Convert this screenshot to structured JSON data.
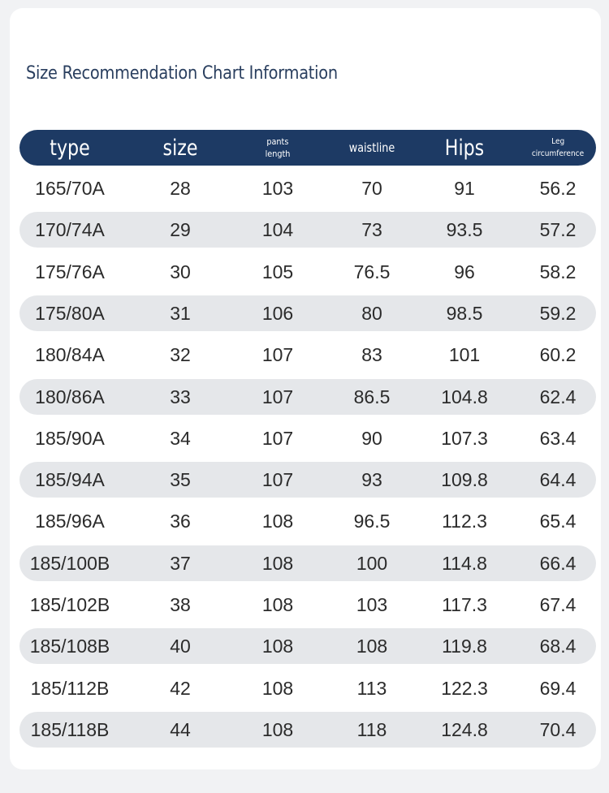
{
  "title": "Size Recommendation Chart Information",
  "headers": {
    "type": "type",
    "size": "size",
    "pants_length_1": "pants",
    "pants_length_2": "length",
    "waistline": "waistline",
    "hips": "Hips",
    "leg_1": "Leg",
    "leg_2": "circumference"
  },
  "rows": [
    [
      "165/70A",
      "28",
      "103",
      "70",
      "91",
      "56.2"
    ],
    [
      "170/74A",
      "29",
      "104",
      "73",
      "93.5",
      "57.2"
    ],
    [
      "175/76A",
      "30",
      "105",
      "76.5",
      "96",
      "58.2"
    ],
    [
      "175/80A",
      "31",
      "106",
      "80",
      "98.5",
      "59.2"
    ],
    [
      "180/84A",
      "32",
      "107",
      "83",
      "101",
      "60.2"
    ],
    [
      "180/86A",
      "33",
      "107",
      "86.5",
      "104.8",
      "62.4"
    ],
    [
      "185/90A",
      "34",
      "107",
      "90",
      "107.3",
      "63.4"
    ],
    [
      "185/94A",
      "35",
      "107",
      "93",
      "109.8",
      "64.4"
    ],
    [
      "185/96A",
      "36",
      "108",
      "96.5",
      "112.3",
      "65.4"
    ],
    [
      "185/100B",
      "37",
      "108",
      "100",
      "114.8",
      "66.4"
    ],
    [
      "185/102B",
      "38",
      "108",
      "103",
      "117.3",
      "67.4"
    ],
    [
      "185/108B",
      "40",
      "108",
      "108",
      "119.8",
      "68.4"
    ],
    [
      "185/112B",
      "42",
      "108",
      "113",
      "122.3",
      "69.4"
    ],
    [
      "185/118B",
      "44",
      "108",
      "118",
      "124.8",
      "70.4"
    ]
  ],
  "colors": {
    "header_bg": "#1d3a64",
    "title": "#2a3f5f",
    "row_shade": "#e5e7ea"
  }
}
